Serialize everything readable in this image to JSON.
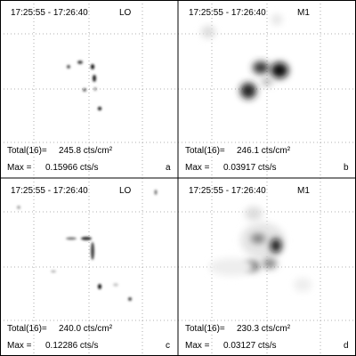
{
  "panels": [
    {
      "time": "17:25:55 - 17:26:40",
      "instrument": "LO",
      "total_label": "Total(16)=",
      "total": "245.8 cts/cm²",
      "max_label": "Max =",
      "max": "0.15966 cts/s",
      "letter": "a"
    },
    {
      "time": "17:25:55 - 17:26:40",
      "instrument": "M1",
      "total_label": "Total(16)=",
      "total": "246.1 cts/cm²",
      "max_label": "Max =",
      "max": "0.03917 cts/s",
      "letter": "b"
    },
    {
      "time": "17:25:55 - 17:26:40",
      "instrument": "LO",
      "total_label": "Total(16)=",
      "total": "240.0 cts/cm²",
      "max_label": "Max =",
      "max": "0.12286 cts/s",
      "letter": "c"
    },
    {
      "time": "17:25:55 - 17:26:40",
      "instrument": "M1",
      "total_label": "Total(16)=",
      "total": "230.3 cts/cm²",
      "max_label": "Max =",
      "max": "0.03127 cts/s",
      "letter": "d"
    }
  ]
}
